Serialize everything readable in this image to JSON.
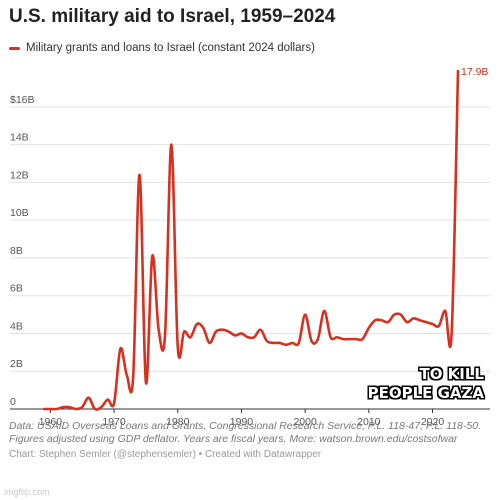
{
  "chart_data": {
    "type": "line",
    "title": "U.S. military aid to Israel, 1959–2024",
    "xlabel": "",
    "ylabel": "",
    "xlim": [
      1959,
      2024
    ],
    "ylim": [
      0,
      17.9
    ],
    "grid": "horizontal",
    "legend_position": "top-left",
    "color": "#d7301f",
    "y_ticks": [
      {
        "value": 0,
        "label": "0"
      },
      {
        "value": 2,
        "label": "2B"
      },
      {
        "value": 4,
        "label": "4B"
      },
      {
        "value": 6,
        "label": "6B"
      },
      {
        "value": 8,
        "label": "8B"
      },
      {
        "value": 10,
        "label": "10B"
      },
      {
        "value": 12,
        "label": "12B"
      },
      {
        "value": 14,
        "label": "14B"
      },
      {
        "value": 16,
        "label": "$16B"
      }
    ],
    "x_ticks": [
      {
        "value": 1960,
        "label": "1960"
      },
      {
        "value": 1970,
        "label": "1970"
      },
      {
        "value": 1980,
        "label": "1980"
      },
      {
        "value": 1990,
        "label": "1990"
      },
      {
        "value": 2000,
        "label": "2000"
      },
      {
        "value": 2010,
        "label": "2010"
      },
      {
        "value": 2020,
        "label": "2020"
      }
    ],
    "series": [
      {
        "name": "Military grants and loans to Israel (constant 2024 dollars)",
        "x": [
          1959,
          1960,
          1961,
          1962,
          1963,
          1964,
          1965,
          1966,
          1967,
          1968,
          1969,
          1970,
          1971,
          1972,
          1973,
          1974,
          1975,
          1976,
          1977,
          1978,
          1979,
          1980,
          1981,
          1982,
          1983,
          1984,
          1985,
          1986,
          1987,
          1988,
          1989,
          1990,
          1991,
          1992,
          1993,
          1994,
          1995,
          1996,
          1997,
          1998,
          1999,
          2000,
          2001,
          2002,
          2003,
          2004,
          2005,
          2006,
          2007,
          2008,
          2009,
          2010,
          2011,
          2012,
          2013,
          2014,
          2015,
          2016,
          2017,
          2018,
          2019,
          2020,
          2021,
          2022,
          2023,
          2024
        ],
        "values": [
          0,
          0,
          0,
          0.1,
          0.1,
          0,
          0.1,
          0.6,
          0,
          0.1,
          0.5,
          0.3,
          3.2,
          1.8,
          1.7,
          12.4,
          1.4,
          8.1,
          4.2,
          3.9,
          14.0,
          3.3,
          4.1,
          3.8,
          4.5,
          4.3,
          3.5,
          4.1,
          4.2,
          4.1,
          3.9,
          4.0,
          3.8,
          3.8,
          4.2,
          3.6,
          3.5,
          3.5,
          3.4,
          3.5,
          3.5,
          5.0,
          3.6,
          3.7,
          5.2,
          3.8,
          3.8,
          3.7,
          3.7,
          3.7,
          3.7,
          4.3,
          4.7,
          4.7,
          4.6,
          5.0,
          5.0,
          4.6,
          4.8,
          4.7,
          4.6,
          4.5,
          4.4,
          5.2,
          4.0,
          17.9
        ]
      }
    ],
    "annotations": [
      {
        "text": "17.9B",
        "x": 2024,
        "y": 17.9
      }
    ]
  },
  "source_text": "Data: USAID Overseas Loans and Grants, Congressional Research Service, P.L. 118-47, P.L. 118-50. Figures adjusted using GDP deflator. Years are fiscal years. More: watson.brown.edu/costsofwar",
  "credit_text": "Chart: Stephen Semler (@stephensemler) • Created with Datawrapper",
  "watermark_text": "imgflip.com",
  "overlay_caption": {
    "line1": "TO KILL",
    "line2": "PEOPLE GAZA"
  }
}
